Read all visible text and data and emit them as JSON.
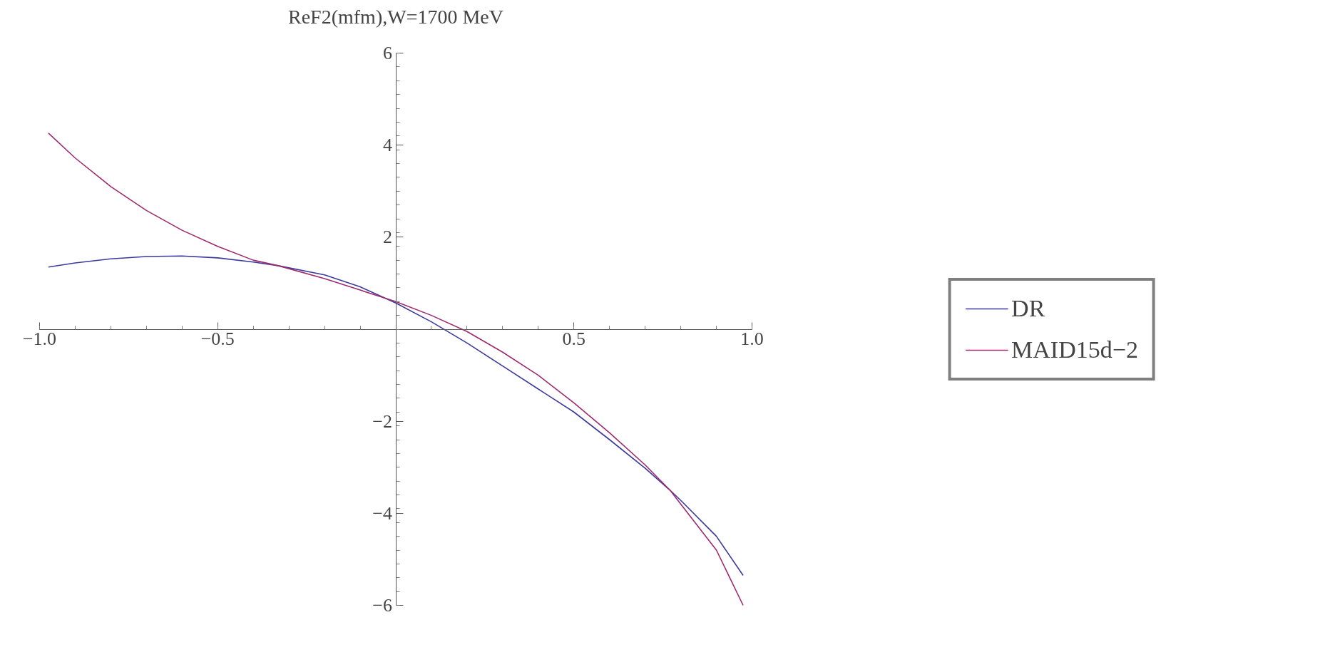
{
  "chart_data": {
    "type": "line",
    "title": "ReF2(mfm),W=1700 MeV",
    "legend": "right",
    "grid": false,
    "xlim": [
      -1.0,
      1.0
    ],
    "ylim": [
      -6,
      6
    ],
    "xticks": [
      {
        "value": -1.0,
        "label": "−1.0"
      },
      {
        "value": -0.5,
        "label": "−0.5"
      },
      {
        "value": 0.5,
        "label": "0.5"
      },
      {
        "value": 1.0,
        "label": "1.0"
      }
    ],
    "yticks": [
      {
        "value": -6,
        "label": "−6"
      },
      {
        "value": -4,
        "label": "−4"
      },
      {
        "value": -2,
        "label": "−2"
      },
      2,
      4,
      6
    ],
    "x": [
      -0.975,
      -0.9,
      -0.8,
      -0.7,
      -0.6,
      -0.5,
      -0.4,
      -0.33,
      -0.2,
      -0.1,
      0,
      0.1,
      0.2,
      0.3,
      0.4,
      0.5,
      0.6,
      0.7,
      0.77,
      0.8,
      0.9,
      0.975
    ],
    "series": [
      {
        "name": "DR",
        "color": "#3a3a9e",
        "values": [
          1.35,
          1.44,
          1.53,
          1.58,
          1.59,
          1.55,
          1.46,
          1.38,
          1.18,
          0.92,
          0.57,
          0.16,
          -0.3,
          -0.8,
          -1.3,
          -1.8,
          -2.4,
          -3.02,
          -3.5,
          -3.72,
          -4.5,
          -5.35
        ]
      },
      {
        "name": "MAID15d−2",
        "color": "#9e2a6e",
        "values": [
          4.26,
          3.72,
          3.1,
          2.58,
          2.15,
          1.8,
          1.5,
          1.38,
          1.1,
          0.85,
          0.6,
          0.3,
          -0.05,
          -0.5,
          -1.0,
          -1.6,
          -2.25,
          -2.95,
          -3.5,
          -3.8,
          -4.8,
          -6.0
        ]
      }
    ]
  }
}
